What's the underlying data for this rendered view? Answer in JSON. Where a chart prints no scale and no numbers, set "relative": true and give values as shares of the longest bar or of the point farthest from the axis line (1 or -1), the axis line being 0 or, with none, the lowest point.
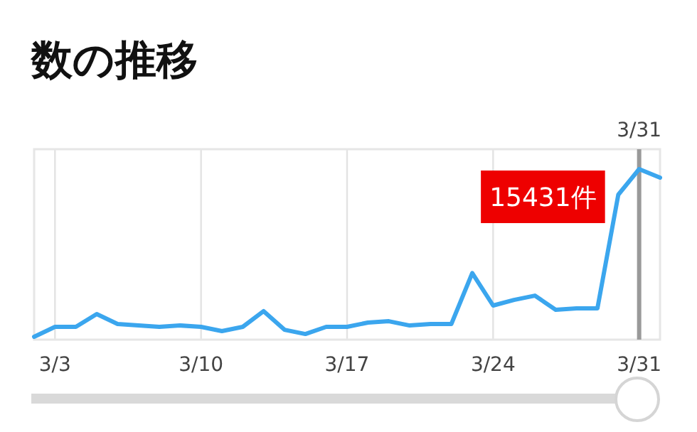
{
  "chart_data": {
    "type": "line",
    "title": "数の推移",
    "relative": true,
    "color": "#3ba6ee",
    "grid": "x",
    "marker": "none",
    "line_style": "solid",
    "x": [
      "--03-02",
      "--03-03",
      "--03-04",
      "--03-05",
      "--03-06",
      "--03-07",
      "--03-08",
      "--03-09",
      "--03-10",
      "--03-11",
      "--03-12",
      "--03-13",
      "--03-14",
      "--03-15",
      "--03-16",
      "--03-17",
      "--03-18",
      "--03-19",
      "--03-20",
      "--03-21",
      "--03-22",
      "--03-23",
      "--03-24",
      "--03-25",
      "--03-26",
      "--03-27",
      "--03-28",
      "--03-29",
      "--03-30",
      "--03-31",
      "--04-01"
    ],
    "values": [
      0.017,
      0.075,
      0.075,
      0.15,
      0.092,
      0.083,
      0.075,
      0.083,
      0.075,
      0.05,
      0.075,
      0.167,
      0.058,
      0.033,
      0.075,
      0.075,
      0.1,
      0.108,
      0.083,
      0.092,
      0.092,
      0.39,
      0.2,
      0.233,
      0.258,
      0.175,
      0.183,
      0.183,
      0.85,
      1,
      0.95
    ],
    "xlim": [
      "--03-02",
      "--04-01"
    ],
    "xticks": [
      {
        "value": "--03-03",
        "label": "3/3"
      },
      {
        "value": "--03-10",
        "label": "3/10"
      },
      {
        "value": "--03-17",
        "label": "3/17"
      },
      {
        "value": "--03-24",
        "label": "3/24"
      },
      {
        "value": "--03-31",
        "label": "3/31"
      }
    ],
    "ref_lines": [
      {
        "axis": "x",
        "value": "--03-31",
        "label": "3/31",
        "color": "#999999"
      }
    ],
    "annotations": [
      {
        "text": "15431件",
        "x": "--03-31"
      }
    ]
  }
}
